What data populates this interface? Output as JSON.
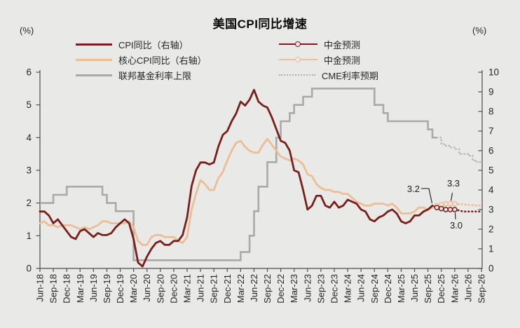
{
  "title": "美国CPI同比增速",
  "units": {
    "left": "(%)",
    "right": "(%)"
  },
  "colors": {
    "bg": "#E9E9E7",
    "dark_red": "#781F1B",
    "tan": "#ECBE96",
    "gray": "#A9A9A9",
    "gray_dotted": "#B1B1B1",
    "axis": "#4D4D4D",
    "tick_text": "#262626"
  },
  "legend": {
    "col1": [
      {
        "label": "CPI同比（右轴）",
        "swatch": "solid-darkred"
      },
      {
        "label": "核心CPI同比（右轴）",
        "swatch": "solid-tan"
      },
      {
        "label": "联邦基金利率上限",
        "swatch": "solid-gray"
      }
    ],
    "col2": [
      {
        "label": "中金预测",
        "swatch": "marker-darkred"
      },
      {
        "label": "中金预测",
        "swatch": "marker-tan"
      },
      {
        "label": "CME利率预期",
        "swatch": "dotted-gray"
      }
    ]
  },
  "annotations": [
    {
      "text": "3.2",
      "refers_to": "CPI同比 last point Oct-25"
    },
    {
      "text": "3.3",
      "refers_to": "核心CPI 中金预测 peak"
    },
    {
      "text": "3.0",
      "refers_to": "CPI同比 中金预测"
    }
  ],
  "chart_data": {
    "type": "line",
    "title": "美国CPI同比增速",
    "x_start_month": "Jun-18",
    "x_end_month": "Sep-26",
    "months_total": 100,
    "x_labels": [
      "Jun-18",
      "Sep-18",
      "Dec-18",
      "Mar-19",
      "Jun-19",
      "Sep-19",
      "Dec-19",
      "Mar-20",
      "Jun-20",
      "Sep-20",
      "Dec-20",
      "Mar-21",
      "Jun-21",
      "Sep-21",
      "Dec-21",
      "Mar-22",
      "Jun-22",
      "Sep-22",
      "Dec-22",
      "Mar-23",
      "Jun-23",
      "Sep-23",
      "Dec-23",
      "Mar-24",
      "Jun-24",
      "Sep-24",
      "Dec-24",
      "Mar-25",
      "Jun-25",
      "Sep-25",
      "Dec-25",
      "Mar-26",
      "Jun-26",
      "Sep-26"
    ],
    "left_axis": {
      "label": "(%)",
      "min": 0,
      "max": 6,
      "step": 1
    },
    "right_axis": {
      "label": "(%)",
      "min": 0,
      "max": 10,
      "step": 1
    },
    "grid": false,
    "legend_position": "top",
    "series": [
      {
        "name": "CPI同比（右轴）",
        "axis": "right",
        "style": "solid",
        "color_key": "dark_red",
        "start_month_index": 0,
        "values": [
          2.9,
          2.9,
          2.7,
          2.3,
          2.5,
          2.2,
          1.9,
          1.6,
          1.5,
          1.9,
          2.0,
          1.8,
          1.6,
          1.8,
          1.7,
          1.7,
          1.8,
          2.1,
          2.3,
          2.5,
          2.3,
          1.5,
          0.3,
          0.1,
          0.6,
          1.0,
          1.3,
          1.4,
          1.2,
          1.2,
          1.4,
          1.4,
          1.7,
          2.6,
          4.2,
          5.0,
          5.4,
          5.4,
          5.3,
          5.4,
          6.2,
          6.8,
          7.0,
          7.5,
          7.9,
          8.5,
          8.3,
          8.6,
          9.1,
          8.5,
          8.3,
          8.2,
          7.7,
          7.1,
          6.5,
          6.4,
          6.0,
          5.0,
          4.9,
          4.0,
          3.0,
          3.2,
          3.7,
          3.7,
          3.2,
          3.1,
          3.4,
          3.1,
          3.2,
          3.5,
          3.4,
          3.3,
          3.0,
          2.9,
          2.5,
          2.4,
          2.6,
          2.7,
          2.9,
          3.0,
          2.8,
          2.4,
          2.3,
          2.4,
          2.7,
          2.7,
          2.9,
          3.0,
          3.2
        ]
      },
      {
        "name": "核心CPI同比（右轴）",
        "axis": "right",
        "style": "solid",
        "color_key": "tan",
        "start_month_index": 0,
        "values": [
          2.3,
          2.4,
          2.2,
          2.2,
          2.1,
          2.2,
          2.2,
          2.2,
          2.1,
          2.0,
          2.1,
          2.0,
          2.1,
          2.2,
          2.4,
          2.4,
          2.3,
          2.3,
          2.3,
          2.3,
          2.4,
          2.1,
          1.4,
          1.2,
          1.2,
          1.6,
          1.7,
          1.7,
          1.6,
          1.6,
          1.6,
          1.4,
          1.3,
          1.6,
          3.0,
          3.8,
          4.5,
          4.3,
          4.0,
          4.0,
          4.6,
          4.9,
          5.5,
          6.0,
          6.4,
          6.5,
          6.2,
          6.0,
          5.9,
          5.9,
          6.3,
          6.6,
          6.3,
          6.0,
          5.7,
          5.6,
          5.5,
          5.6,
          5.5,
          5.3,
          4.8,
          4.7,
          4.3,
          4.1,
          4.0,
          4.0,
          3.9,
          3.9,
          3.8,
          3.8,
          3.6,
          3.4,
          3.3,
          3.2,
          3.2,
          3.3,
          3.3,
          3.3,
          3.2,
          3.3,
          3.1,
          2.8,
          2.8,
          2.8,
          2.9,
          3.1,
          3.1,
          3.0,
          3.1
        ]
      },
      {
        "name": "联邦基金利率上限",
        "axis": "left",
        "style": "step",
        "color_key": "gray",
        "start_month_index": 0,
        "values": [
          2.0,
          2.0,
          2.0,
          2.25,
          2.25,
          2.25,
          2.5,
          2.5,
          2.5,
          2.5,
          2.5,
          2.5,
          2.5,
          2.5,
          2.25,
          2.0,
          2.0,
          1.75,
          1.75,
          1.75,
          1.75,
          0.25,
          0.25,
          0.25,
          0.25,
          0.25,
          0.25,
          0.25,
          0.25,
          0.25,
          0.25,
          0.25,
          0.25,
          0.25,
          0.25,
          0.25,
          0.25,
          0.25,
          0.25,
          0.25,
          0.25,
          0.25,
          0.25,
          0.25,
          0.25,
          0.5,
          0.5,
          1.0,
          1.75,
          2.5,
          2.5,
          3.25,
          3.25,
          4.0,
          4.5,
          4.5,
          4.75,
          5.0,
          5.0,
          5.25,
          5.25,
          5.5,
          5.5,
          5.5,
          5.5,
          5.5,
          5.5,
          5.5,
          5.5,
          5.5,
          5.5,
          5.5,
          5.5,
          5.5,
          5.5,
          5.0,
          5.0,
          4.75,
          4.5,
          4.5,
          4.5,
          4.5,
          4.5,
          4.5,
          4.5,
          4.5,
          4.5,
          4.25,
          4.0,
          4.0
        ]
      },
      {
        "name": "中金预测",
        "axis": "right",
        "style": "markers",
        "color_key": "dark_red",
        "start_month_index": 88,
        "values": [
          3.2,
          3.1,
          3.05,
          3.0,
          3.0,
          3.0
        ],
        "dotted_start_month_index": 93,
        "dotted_values": [
          3.0,
          2.95,
          2.9,
          2.9,
          2.9,
          2.9,
          2.9
        ]
      },
      {
        "name": "中金预测",
        "axis": "right",
        "style": "markers",
        "color_key": "tan",
        "start_month_index": 88,
        "values": [
          3.1,
          3.2,
          3.25,
          3.3,
          3.3,
          3.3
        ],
        "dotted_start_month_index": 93,
        "dotted_values": [
          3.3,
          3.28,
          3.26,
          3.24,
          3.22,
          3.2,
          3.2
        ]
      },
      {
        "name": "CME利率预期",
        "axis": "left",
        "style": "dotted-step",
        "color_key": "gray_dotted",
        "start_month_index": 89,
        "values": [
          4.0,
          3.8,
          3.75,
          3.7,
          3.65,
          3.5,
          3.5,
          3.45,
          3.3,
          3.25,
          3.25
        ]
      }
    ]
  }
}
